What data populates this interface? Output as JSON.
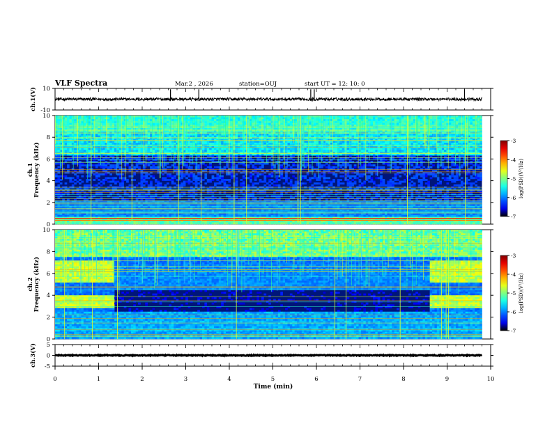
{
  "header": {
    "title": "VLF Spectra",
    "date": "Mar.2  , 2026",
    "station": "station=OUJ",
    "start": "start  UT =   12: 10: 0"
  },
  "chart_data": [
    {
      "type": "line",
      "id": "ch1-waveform",
      "ylabel": "ch.1(V)",
      "ylim": [
        -10,
        10
      ],
      "yticks": [
        "10",
        "-10"
      ],
      "baseline": 0,
      "noise_amplitude": 1.4,
      "spikes": [
        2.65,
        3.3,
        5.87,
        5.95,
        9.4
      ]
    },
    {
      "type": "heatmap",
      "id": "ch1-spectrogram",
      "ylabel": "ch.1  Frequency (kHz)",
      "ylim": [
        0,
        10
      ],
      "yticks": [
        "0",
        "2",
        "4",
        "6",
        "8",
        "10"
      ],
      "colorbar": {
        "label": "log(PSD)(V²/Hz)",
        "range": [
          -7,
          -3
        ],
        "ticks": [
          "-3",
          "-4",
          "-5",
          "-6",
          "-7"
        ]
      }
    },
    {
      "type": "heatmap",
      "id": "ch2-spectrogram",
      "ylabel": "ch.2  Frequency (kHz)",
      "ylim": [
        0,
        10
      ],
      "yticks": [
        "0",
        "2",
        "4",
        "6",
        "8",
        "10"
      ],
      "colorbar": {
        "label": "log(PSD)(V²/Hz)",
        "range": [
          -7,
          -3
        ],
        "ticks": [
          "-3",
          "-4",
          "-5",
          "-6",
          "-7"
        ]
      },
      "high_activity_intervals": [
        [
          0,
          1.35
        ],
        [
          8.6,
          9.8
        ]
      ]
    },
    {
      "type": "line",
      "id": "ch3-waveform",
      "ylabel": "ch.3(V)",
      "ylim": [
        -5,
        5
      ],
      "yticks": [
        "5",
        "0",
        "-5"
      ],
      "baseline": 0,
      "noise_amplitude": 0.2
    }
  ],
  "xaxis": {
    "label": "Time  (min)",
    "range": [
      0,
      10
    ],
    "data_end": 9.8,
    "ticks": [
      "0",
      "1",
      "2",
      "3",
      "4",
      "5",
      "6",
      "7",
      "8",
      "9",
      "10"
    ]
  }
}
